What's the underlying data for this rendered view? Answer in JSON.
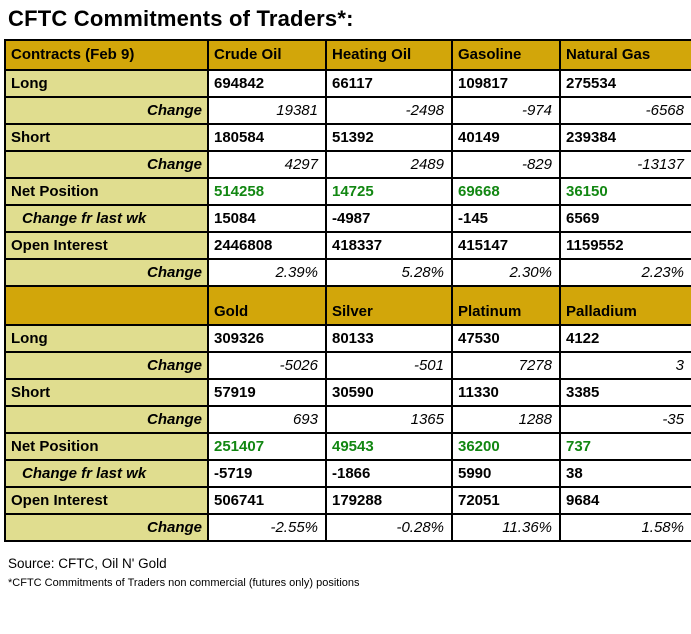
{
  "title": "CFTC Commitments of Traders*:",
  "colors": {
    "header_gold": "#D2A60A",
    "label_bg": "#E0DD8F",
    "net_green": "#128712",
    "border": "#000000"
  },
  "chart_data": {
    "type": "table",
    "title": "CFTC Commitments of Traders*:",
    "sections": [
      {
        "header": [
          "Contracts (Feb 9)",
          "Crude Oil",
          "Heating Oil",
          "Gasoline",
          "Natural Gas"
        ],
        "rows": [
          {
            "label": "Long",
            "style": "main",
            "values": [
              "694842",
              "66117",
              "109817",
              "275534"
            ]
          },
          {
            "label": "Change",
            "style": "change",
            "values": [
              "19381",
              "-2498",
              "-974",
              "-6568"
            ]
          },
          {
            "label": "Short",
            "style": "main",
            "values": [
              "180584",
              "51392",
              "40149",
              "239384"
            ]
          },
          {
            "label": "Change",
            "style": "change",
            "values": [
              "4297",
              "2489",
              "-829",
              "-13137"
            ]
          },
          {
            "label": "Net Position",
            "style": "net",
            "values": [
              "514258",
              "14725",
              "69668",
              "36150"
            ]
          },
          {
            "label": "Change fr last wk",
            "style": "changewk",
            "values": [
              "15084",
              "-4987",
              "-145",
              "6569"
            ]
          },
          {
            "label": "Open Interest",
            "style": "main",
            "values": [
              "2446808",
              "418337",
              "415147",
              "1159552"
            ]
          },
          {
            "label": "Change",
            "style": "change",
            "values": [
              "2.39%",
              "5.28%",
              "2.30%",
              "2.23%"
            ]
          }
        ]
      },
      {
        "header": [
          "",
          "Gold",
          "Silver",
          "Platinum",
          "Palladium"
        ],
        "rows": [
          {
            "label": "Long",
            "style": "main",
            "values": [
              "309326",
              "80133",
              "47530",
              "4122"
            ]
          },
          {
            "label": "Change",
            "style": "change",
            "values": [
              "-5026",
              "-501",
              "7278",
              "3"
            ]
          },
          {
            "label": "Short",
            "style": "main",
            "values": [
              "57919",
              "30590",
              "11330",
              "3385"
            ]
          },
          {
            "label": "Change",
            "style": "change",
            "values": [
              "693",
              "1365",
              "1288",
              "-35"
            ]
          },
          {
            "label": "Net Position",
            "style": "net",
            "values": [
              "251407",
              "49543",
              "36200",
              "737"
            ]
          },
          {
            "label": "Change fr last wk",
            "style": "changewk",
            "values": [
              "-5719",
              "-1866",
              "5990",
              "38"
            ]
          },
          {
            "label": "Open Interest",
            "style": "main",
            "values": [
              "506741",
              "179288",
              "72051",
              "9684"
            ]
          },
          {
            "label": "Change",
            "style": "change",
            "values": [
              "-2.55%",
              "-0.28%",
              "11.36%",
              "1.58%"
            ]
          }
        ]
      }
    ]
  },
  "footer": {
    "source": "Source: CFTC, Oil N' Gold",
    "footnote": "*CFTC Commitments of Traders non commercial (futures only) positions"
  }
}
